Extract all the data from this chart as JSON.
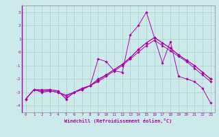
{
  "xlabel": "Windchill (Refroidissement éolien,°C)",
  "xlim": [
    -0.5,
    23.5
  ],
  "ylim": [
    -4.5,
    3.5
  ],
  "yticks": [
    -4,
    -3,
    -2,
    -1,
    0,
    1,
    2,
    3
  ],
  "xticks": [
    0,
    1,
    2,
    3,
    4,
    5,
    6,
    7,
    8,
    9,
    10,
    11,
    12,
    13,
    14,
    15,
    16,
    17,
    18,
    19,
    20,
    21,
    22,
    23
  ],
  "bg_color": "#cceaea",
  "line_color": "#aa00aa",
  "grid_color": "#aacccc",
  "series": [
    [
      -3.5,
      -2.8,
      -3.0,
      -2.9,
      -3.0,
      -3.3,
      -3.0,
      -2.8,
      -2.5,
      -2.1,
      -1.7,
      -1.3,
      -0.9,
      -0.4,
      0.2,
      0.7,
      1.1,
      0.7,
      0.3,
      -0.2,
      -0.6,
      -1.0,
      -1.5,
      -2.0
    ],
    [
      -3.5,
      -2.8,
      -2.9,
      -2.9,
      -3.0,
      -3.2,
      -3.0,
      -2.8,
      -2.5,
      -2.2,
      -1.8,
      -1.4,
      -1.0,
      -0.5,
      0.0,
      0.5,
      0.9,
      0.5,
      0.1,
      -0.3,
      -0.7,
      -1.2,
      -1.7,
      -2.2
    ],
    [
      -3.5,
      -2.8,
      -2.8,
      -2.8,
      -2.9,
      -3.5,
      -3.0,
      -2.7,
      -2.5,
      -0.5,
      -0.7,
      -1.4,
      -1.5,
      1.3,
      2.0,
      3.0,
      1.1,
      -0.8,
      0.8,
      -1.8,
      -2.0,
      -2.2,
      -2.7,
      -3.8
    ],
    [
      -3.5,
      -2.8,
      -2.9,
      -2.8,
      -2.9,
      -3.5,
      -3.0,
      -2.7,
      -2.5,
      -2.0,
      -1.7,
      -1.3,
      -0.9,
      -0.4,
      0.2,
      0.7,
      1.1,
      0.7,
      0.3,
      -0.2,
      -0.6,
      -1.0,
      -1.5,
      -2.0
    ]
  ]
}
